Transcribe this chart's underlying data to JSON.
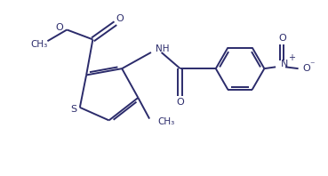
{
  "background_color": "#ffffff",
  "line_color": "#2b2b6b",
  "line_width": 1.4,
  "figsize": [
    3.69,
    1.98
  ],
  "dpi": 100,
  "xlim": [
    0,
    10
  ],
  "ylim": [
    0,
    5.4
  ]
}
